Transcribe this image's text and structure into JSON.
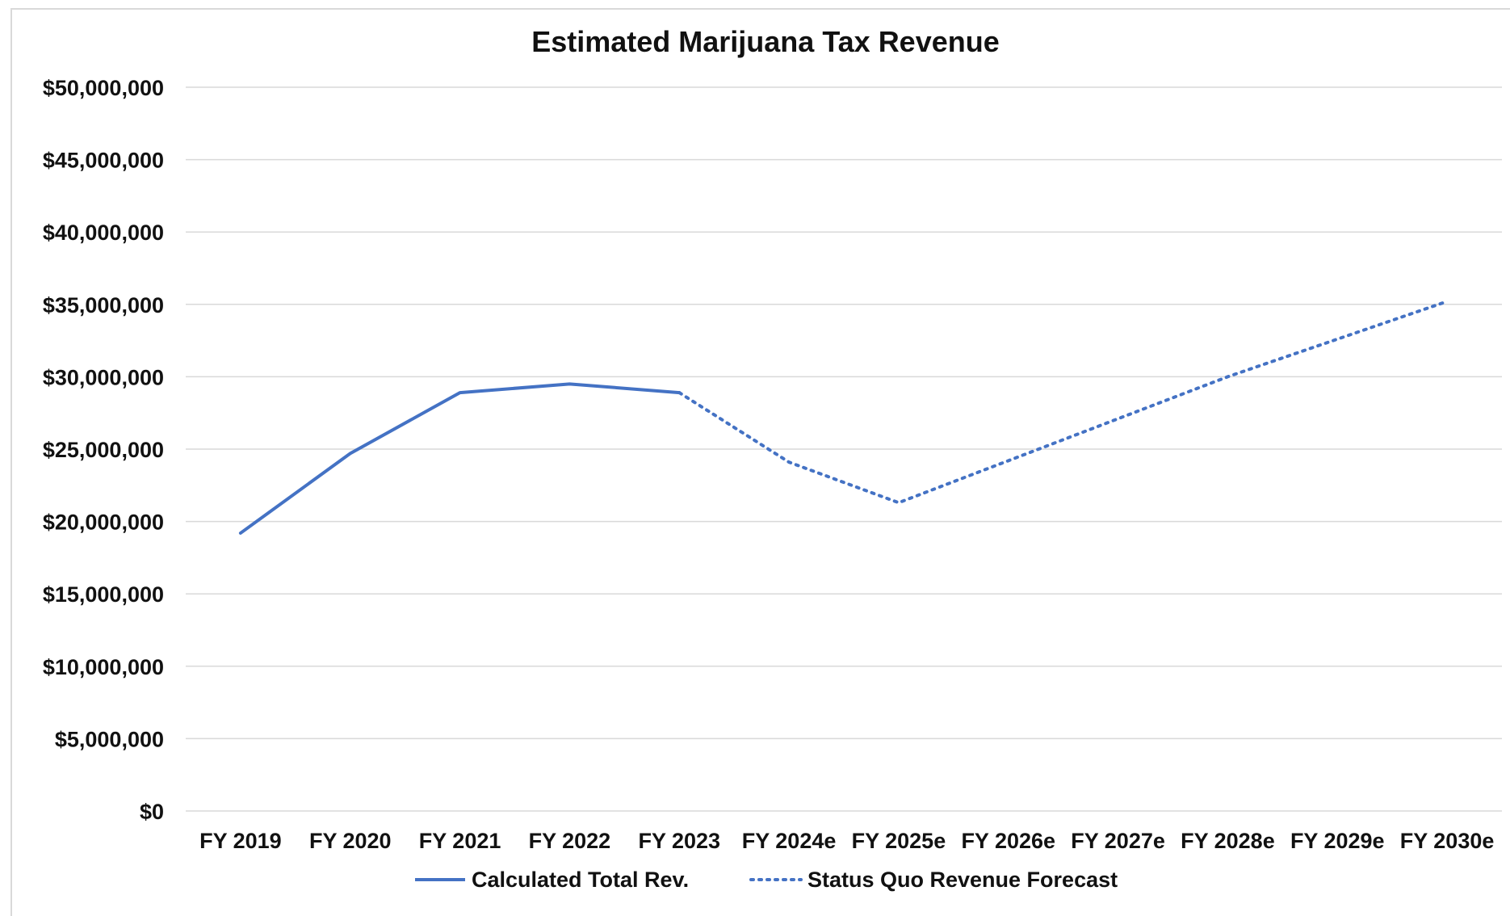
{
  "chart_data": {
    "type": "line",
    "title": "Estimated Marijuana Tax Revenue",
    "xlabel": "",
    "ylabel": "",
    "categories": [
      "FY 2019",
      "FY 2020",
      "FY 2021",
      "FY 2022",
      "FY 2023",
      "FY 2024e",
      "FY 2025e",
      "FY 2026e",
      "FY 2027e",
      "FY 2028e",
      "FY 2029e",
      "FY 2030e"
    ],
    "ylim": [
      0,
      50000000
    ],
    "yticks": [
      0,
      5000000,
      10000000,
      15000000,
      20000000,
      25000000,
      30000000,
      35000000,
      40000000,
      45000000,
      50000000
    ],
    "ytick_labels": [
      "$0",
      "$5,000,000",
      "$10,000,000",
      "$15,000,000",
      "$20,000,000",
      "$25,000,000",
      "$30,000,000",
      "$35,000,000",
      "$40,000,000",
      "$45,000,000",
      "$50,000,000"
    ],
    "grid": true,
    "legend_position": "bottom",
    "series": [
      {
        "name": "Calculated Total Rev.",
        "style": "solid",
        "color": "#4472C4",
        "values": [
          19200000,
          24700000,
          28900000,
          29500000,
          28900000,
          null,
          null,
          null,
          null,
          null,
          null,
          null
        ]
      },
      {
        "name": "Status Quo Revenue Forecast",
        "style": "dotted",
        "color": "#4472C4",
        "values": [
          null,
          null,
          null,
          null,
          28900000,
          24100000,
          21300000,
          24200000,
          27100000,
          30000000,
          32600000,
          35200000
        ]
      }
    ]
  }
}
